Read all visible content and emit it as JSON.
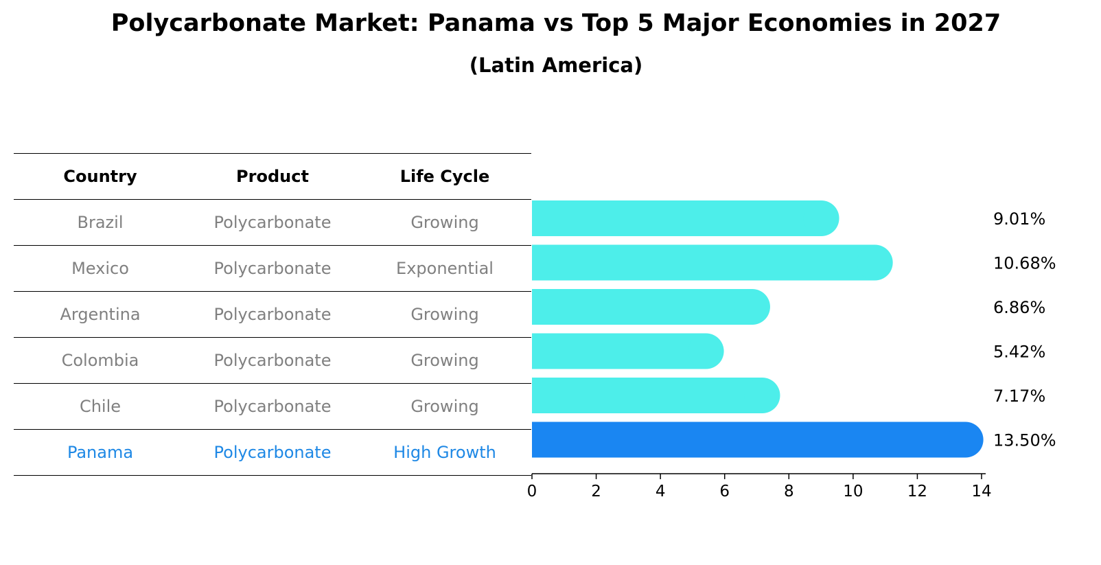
{
  "title": "Polycarbonate Market: Panama vs Top 5 Major Economies in 2027",
  "subtitle": "(Latin America)",
  "table": {
    "headers": [
      "Country",
      "Product",
      "Life Cycle"
    ],
    "rows": [
      {
        "country": "Brazil",
        "product": "Polycarbonate",
        "life_cycle": "Growing"
      },
      {
        "country": "Mexico",
        "product": "Polycarbonate",
        "life_cycle": "Exponential"
      },
      {
        "country": "Argentina",
        "product": "Polycarbonate",
        "life_cycle": "Growing"
      },
      {
        "country": "Colombia",
        "product": "Polycarbonate",
        "life_cycle": "Growing"
      },
      {
        "country": "Chile",
        "product": "Polycarbonate",
        "life_cycle": "Growing"
      },
      {
        "country": "Panama",
        "product": "Polycarbonate",
        "life_cycle": "High Growth"
      }
    ]
  },
  "chart_data": {
    "type": "bar",
    "orientation": "horizontal",
    "categories": [
      "Brazil",
      "Mexico",
      "Argentina",
      "Colombia",
      "Chile",
      "Panama"
    ],
    "values": [
      9.01,
      10.68,
      6.86,
      5.42,
      7.17,
      13.5
    ],
    "data_labels": [
      "9.01%",
      "10.68%",
      "6.86%",
      "5.42%",
      "7.17%",
      "13.50%"
    ],
    "highlight": "Panama",
    "xlim": [
      0,
      14
    ],
    "xticks": [
      0,
      2,
      4,
      6,
      8,
      10,
      12,
      14
    ],
    "colors": {
      "default": "#4deeea",
      "highlight": "#1a86f2"
    }
  },
  "colors": {
    "muted_text": "#808080",
    "highlight_text": "#1e88e5"
  }
}
